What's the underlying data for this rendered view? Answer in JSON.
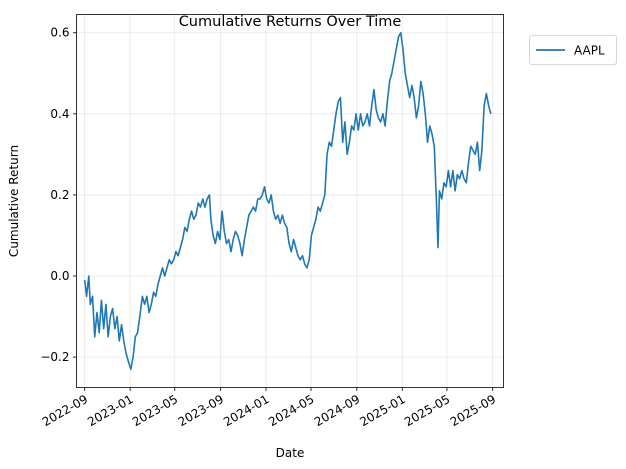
{
  "chart_data": {
    "type": "line",
    "title": "Cumulative Returns Over Time",
    "xlabel": "Date",
    "ylabel": "Cumulative Return",
    "x_range": [
      "2022-08-10",
      "2025-09-30"
    ],
    "ylim": [
      -0.275,
      0.645
    ],
    "grid": true,
    "legend_placement": "outside-top-right",
    "x_ticks": [
      "2022-09",
      "2023-01",
      "2023-05",
      "2023-09",
      "2024-01",
      "2024-05",
      "2024-09",
      "2025-01",
      "2025-05",
      "2025-09"
    ],
    "y_ticks": [
      -0.2,
      0.0,
      0.2,
      0.4,
      0.6
    ],
    "y_tick_labels": [
      "−0.2",
      "0.0",
      "0.2",
      "0.4",
      "0.6"
    ],
    "series": [
      {
        "name": "AAPL",
        "color": "#1f77b4",
        "points": [
          [
            "2022-09-01",
            -0.01
          ],
          [
            "2022-09-06",
            -0.05
          ],
          [
            "2022-09-12",
            0.0
          ],
          [
            "2022-09-16",
            -0.07
          ],
          [
            "2022-09-22",
            -0.05
          ],
          [
            "2022-09-28",
            -0.15
          ],
          [
            "2022-10-04",
            -0.09
          ],
          [
            "2022-10-10",
            -0.14
          ],
          [
            "2022-10-16",
            -0.06
          ],
          [
            "2022-10-22",
            -0.13
          ],
          [
            "2022-10-28",
            -0.07
          ],
          [
            "2022-11-03",
            -0.15
          ],
          [
            "2022-11-09",
            -0.1
          ],
          [
            "2022-11-15",
            -0.08
          ],
          [
            "2022-11-21",
            -0.13
          ],
          [
            "2022-11-27",
            -0.1
          ],
          [
            "2022-12-03",
            -0.16
          ],
          [
            "2022-12-09",
            -0.12
          ],
          [
            "2022-12-15",
            -0.16
          ],
          [
            "2022-12-21",
            -0.19
          ],
          [
            "2022-12-27",
            -0.21
          ],
          [
            "2023-01-03",
            -0.23
          ],
          [
            "2023-01-09",
            -0.2
          ],
          [
            "2023-01-15",
            -0.15
          ],
          [
            "2023-01-21",
            -0.14
          ],
          [
            "2023-01-27",
            -0.1
          ],
          [
            "2023-02-03",
            -0.05
          ],
          [
            "2023-02-09",
            -0.07
          ],
          [
            "2023-02-15",
            -0.05
          ],
          [
            "2023-02-21",
            -0.09
          ],
          [
            "2023-02-27",
            -0.07
          ],
          [
            "2023-03-05",
            -0.04
          ],
          [
            "2023-03-11",
            -0.05
          ],
          [
            "2023-03-17",
            -0.02
          ],
          [
            "2023-03-23",
            0.0
          ],
          [
            "2023-03-29",
            0.02
          ],
          [
            "2023-04-04",
            0.0
          ],
          [
            "2023-04-10",
            0.02
          ],
          [
            "2023-04-16",
            0.04
          ],
          [
            "2023-04-22",
            0.03
          ],
          [
            "2023-04-28",
            0.04
          ],
          [
            "2023-05-04",
            0.06
          ],
          [
            "2023-05-10",
            0.05
          ],
          [
            "2023-05-16",
            0.07
          ],
          [
            "2023-05-22",
            0.09
          ],
          [
            "2023-05-28",
            0.12
          ],
          [
            "2023-06-03",
            0.11
          ],
          [
            "2023-06-09",
            0.14
          ],
          [
            "2023-06-15",
            0.16
          ],
          [
            "2023-06-21",
            0.14
          ],
          [
            "2023-06-27",
            0.15
          ],
          [
            "2023-07-03",
            0.18
          ],
          [
            "2023-07-09",
            0.17
          ],
          [
            "2023-07-15",
            0.19
          ],
          [
            "2023-07-21",
            0.17
          ],
          [
            "2023-07-27",
            0.19
          ],
          [
            "2023-08-02",
            0.2
          ],
          [
            "2023-08-06",
            0.14
          ],
          [
            "2023-08-12",
            0.1
          ],
          [
            "2023-08-18",
            0.08
          ],
          [
            "2023-08-24",
            0.11
          ],
          [
            "2023-08-30",
            0.09
          ],
          [
            "2023-09-05",
            0.16
          ],
          [
            "2023-09-11",
            0.11
          ],
          [
            "2023-09-17",
            0.08
          ],
          [
            "2023-09-23",
            0.09
          ],
          [
            "2023-09-29",
            0.06
          ],
          [
            "2023-10-05",
            0.09
          ],
          [
            "2023-10-11",
            0.11
          ],
          [
            "2023-10-17",
            0.1
          ],
          [
            "2023-10-23",
            0.08
          ],
          [
            "2023-10-29",
            0.05
          ],
          [
            "2023-11-04",
            0.09
          ],
          [
            "2023-11-10",
            0.12
          ],
          [
            "2023-11-16",
            0.15
          ],
          [
            "2023-11-22",
            0.16
          ],
          [
            "2023-11-28",
            0.17
          ],
          [
            "2023-12-04",
            0.16
          ],
          [
            "2023-12-10",
            0.19
          ],
          [
            "2023-12-16",
            0.19
          ],
          [
            "2023-12-22",
            0.2
          ],
          [
            "2023-12-28",
            0.22
          ],
          [
            "2024-01-03",
            0.19
          ],
          [
            "2024-01-09",
            0.18
          ],
          [
            "2024-01-15",
            0.2
          ],
          [
            "2024-01-21",
            0.16
          ],
          [
            "2024-01-27",
            0.14
          ],
          [
            "2024-02-02",
            0.15
          ],
          [
            "2024-02-08",
            0.13
          ],
          [
            "2024-02-14",
            0.15
          ],
          [
            "2024-02-20",
            0.13
          ],
          [
            "2024-02-26",
            0.12
          ],
          [
            "2024-03-03",
            0.08
          ],
          [
            "2024-03-09",
            0.06
          ],
          [
            "2024-03-15",
            0.09
          ],
          [
            "2024-03-21",
            0.07
          ],
          [
            "2024-03-27",
            0.05
          ],
          [
            "2024-04-02",
            0.04
          ],
          [
            "2024-04-08",
            0.05
          ],
          [
            "2024-04-14",
            0.03
          ],
          [
            "2024-04-20",
            0.02
          ],
          [
            "2024-04-26",
            0.04
          ],
          [
            "2024-05-02",
            0.1
          ],
          [
            "2024-05-08",
            0.12
          ],
          [
            "2024-05-14",
            0.14
          ],
          [
            "2024-05-20",
            0.17
          ],
          [
            "2024-05-26",
            0.16
          ],
          [
            "2024-06-01",
            0.18
          ],
          [
            "2024-06-07",
            0.2
          ],
          [
            "2024-06-13",
            0.3
          ],
          [
            "2024-06-19",
            0.33
          ],
          [
            "2024-06-25",
            0.32
          ],
          [
            "2024-07-01",
            0.36
          ],
          [
            "2024-07-07",
            0.4
          ],
          [
            "2024-07-13",
            0.43
          ],
          [
            "2024-07-19",
            0.44
          ],
          [
            "2024-07-25",
            0.33
          ],
          [
            "2024-07-31",
            0.38
          ],
          [
            "2024-08-06",
            0.3
          ],
          [
            "2024-08-12",
            0.33
          ],
          [
            "2024-08-18",
            0.37
          ],
          [
            "2024-08-24",
            0.36
          ],
          [
            "2024-08-30",
            0.4
          ],
          [
            "2024-09-05",
            0.36
          ],
          [
            "2024-09-11",
            0.4
          ],
          [
            "2024-09-17",
            0.37
          ],
          [
            "2024-09-23",
            0.38
          ],
          [
            "2024-09-29",
            0.4
          ],
          [
            "2024-10-05",
            0.37
          ],
          [
            "2024-10-11",
            0.42
          ],
          [
            "2024-10-17",
            0.46
          ],
          [
            "2024-10-23",
            0.41
          ],
          [
            "2024-10-29",
            0.39
          ],
          [
            "2024-11-04",
            0.38
          ],
          [
            "2024-11-10",
            0.4
          ],
          [
            "2024-11-16",
            0.37
          ],
          [
            "2024-11-22",
            0.43
          ],
          [
            "2024-11-28",
            0.48
          ],
          [
            "2024-12-04",
            0.5
          ],
          [
            "2024-12-10",
            0.53
          ],
          [
            "2024-12-16",
            0.56
          ],
          [
            "2024-12-22",
            0.59
          ],
          [
            "2024-12-28",
            0.6
          ],
          [
            "2025-01-03",
            0.56
          ],
          [
            "2025-01-09",
            0.5
          ],
          [
            "2025-01-15",
            0.47
          ],
          [
            "2025-01-21",
            0.44
          ],
          [
            "2025-01-27",
            0.47
          ],
          [
            "2025-02-02",
            0.44
          ],
          [
            "2025-02-08",
            0.39
          ],
          [
            "2025-02-14",
            0.42
          ],
          [
            "2025-02-20",
            0.48
          ],
          [
            "2025-02-26",
            0.45
          ],
          [
            "2025-03-04",
            0.4
          ],
          [
            "2025-03-10",
            0.33
          ],
          [
            "2025-03-16",
            0.37
          ],
          [
            "2025-03-22",
            0.35
          ],
          [
            "2025-03-28",
            0.32
          ],
          [
            "2025-04-03",
            0.18
          ],
          [
            "2025-04-07",
            0.07
          ],
          [
            "2025-04-11",
            0.21
          ],
          [
            "2025-04-17",
            0.19
          ],
          [
            "2025-04-23",
            0.23
          ],
          [
            "2025-04-29",
            0.22
          ],
          [
            "2025-05-05",
            0.26
          ],
          [
            "2025-05-11",
            0.22
          ],
          [
            "2025-05-17",
            0.26
          ],
          [
            "2025-05-23",
            0.21
          ],
          [
            "2025-05-29",
            0.25
          ],
          [
            "2025-06-04",
            0.24
          ],
          [
            "2025-06-10",
            0.26
          ],
          [
            "2025-06-16",
            0.24
          ],
          [
            "2025-06-22",
            0.23
          ],
          [
            "2025-06-28",
            0.28
          ],
          [
            "2025-07-04",
            0.32
          ],
          [
            "2025-07-10",
            0.31
          ],
          [
            "2025-07-16",
            0.3
          ],
          [
            "2025-07-22",
            0.33
          ],
          [
            "2025-07-28",
            0.26
          ],
          [
            "2025-08-03",
            0.31
          ],
          [
            "2025-08-09",
            0.42
          ],
          [
            "2025-08-15",
            0.45
          ],
          [
            "2025-08-21",
            0.42
          ],
          [
            "2025-08-27",
            0.4
          ]
        ]
      }
    ]
  }
}
